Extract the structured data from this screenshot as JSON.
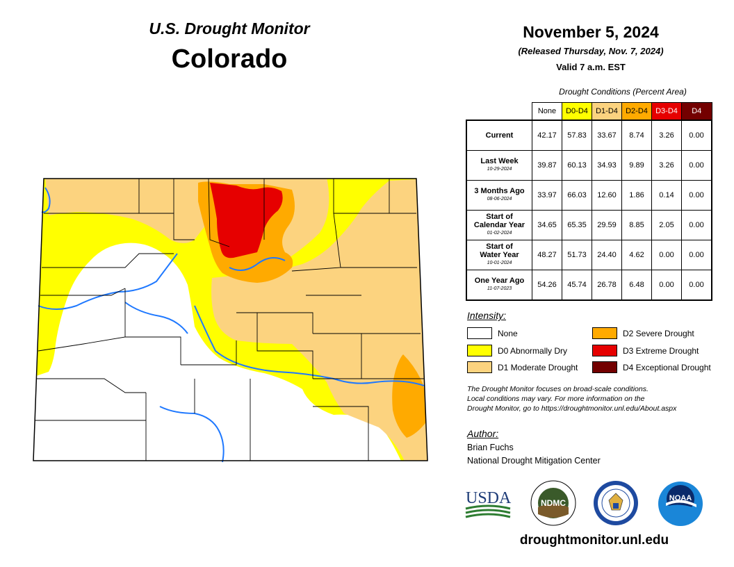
{
  "header": {
    "monitor_title": "U.S. Drought Monitor",
    "state": "Colorado",
    "date": "November 5, 2024",
    "released": "(Released Thursday, Nov. 7, 2024)",
    "valid": "Valid 7 a.m. EST"
  },
  "table": {
    "caption": "Drought Conditions (Percent Area)",
    "columns": [
      {
        "label": "None",
        "color": "#ffffff",
        "text": "#000000"
      },
      {
        "label": "D0-D4",
        "color": "#ffff00",
        "text": "#000000"
      },
      {
        "label": "D1-D4",
        "color": "#fcd37f",
        "text": "#000000"
      },
      {
        "label": "D2-D4",
        "color": "#ffaa00",
        "text": "#000000"
      },
      {
        "label": "D3-D4",
        "color": "#e60000",
        "text": "#ffffff"
      },
      {
        "label": "D4",
        "color": "#730000",
        "text": "#ffffff"
      }
    ],
    "rows": [
      {
        "label": [
          "Current"
        ],
        "date": "",
        "values": [
          "42.17",
          "57.83",
          "33.67",
          "8.74",
          "3.26",
          "0.00"
        ]
      },
      {
        "label": [
          "Last Week"
        ],
        "date": "10-29-2024",
        "values": [
          "39.87",
          "60.13",
          "34.93",
          "9.89",
          "3.26",
          "0.00"
        ]
      },
      {
        "label": [
          "3 Months Ago"
        ],
        "date": "08-06-2024",
        "values": [
          "33.97",
          "66.03",
          "12.60",
          "1.86",
          "0.14",
          "0.00"
        ]
      },
      {
        "label": [
          "Start of",
          "Calendar Year"
        ],
        "date": "01-02-2024",
        "values": [
          "34.65",
          "65.35",
          "29.59",
          "8.85",
          "2.05",
          "0.00"
        ]
      },
      {
        "label": [
          "Start of",
          "Water Year"
        ],
        "date": "10-01-2024",
        "values": [
          "48.27",
          "51.73",
          "24.40",
          "4.62",
          "0.00",
          "0.00"
        ]
      },
      {
        "label": [
          "One Year Ago"
        ],
        "date": "11-07-2023",
        "values": [
          "54.26",
          "45.74",
          "26.78",
          "6.48",
          "0.00",
          "0.00"
        ]
      }
    ]
  },
  "legend": {
    "title": "Intensity:",
    "items": [
      {
        "label": "None",
        "color": "#ffffff"
      },
      {
        "label": "D0 Abnormally Dry",
        "color": "#ffff00"
      },
      {
        "label": "D1 Moderate Drought",
        "color": "#fcd37f"
      },
      {
        "label": "D2 Severe Drought",
        "color": "#ffaa00"
      },
      {
        "label": "D3 Extreme Drought",
        "color": "#e60000"
      },
      {
        "label": "D4 Exceptional Drought",
        "color": "#730000"
      }
    ]
  },
  "note": [
    "The Drought Monitor focuses on broad-scale conditions.",
    "Local conditions may vary. For more information on the",
    "Drought Monitor, go to https://droughtmonitor.unl.edu/About.aspx"
  ],
  "author": {
    "title": "Author:",
    "name": "Brian Fuchs",
    "org": "National Drought Mitigation Center"
  },
  "logos": {
    "usda": "USDA",
    "ndmc": "NDMC",
    "noaa": "NOAA"
  },
  "website": "droughtmonitor.unl.edu",
  "colors": {
    "river": "#1e78ff",
    "county_line": "#000000"
  }
}
